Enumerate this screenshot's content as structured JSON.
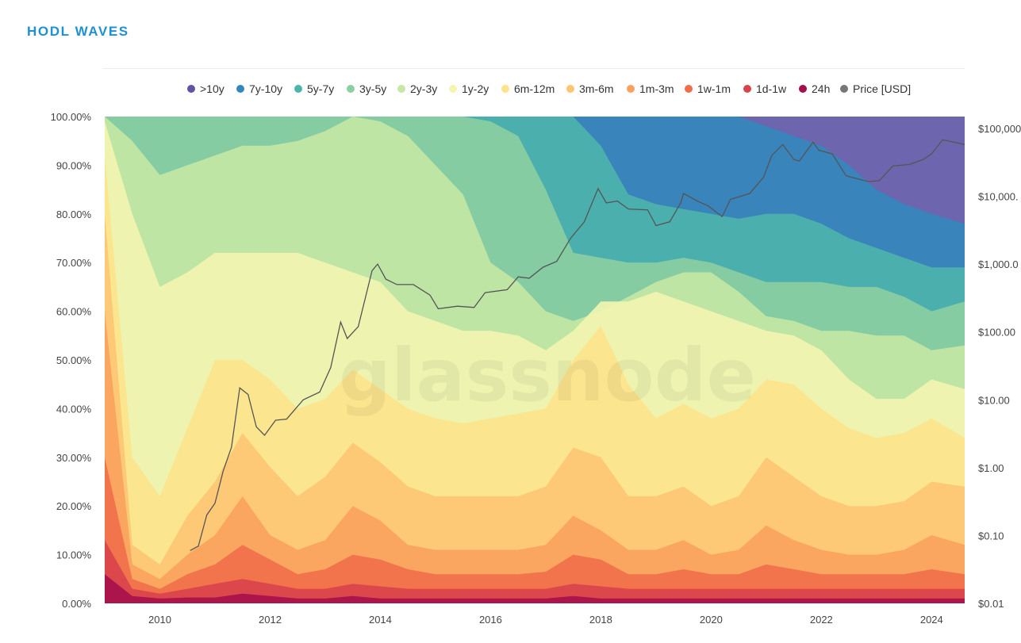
{
  "header": {
    "title": "HODL WAVES"
  },
  "watermark": "glassnode",
  "legend": [
    {
      "label": ">10y",
      "color": "#5d54a4"
    },
    {
      "label": "7y-10y",
      "color": "#3387bc"
    },
    {
      "label": "5y-7y",
      "color": "#4cb4ac"
    },
    {
      "label": "3y-5y",
      "color": "#8ccfa2"
    },
    {
      "label": "2y-3y",
      "color": "#c5e8a4"
    },
    {
      "label": "1y-2y",
      "color": "#f3f5b0"
    },
    {
      "label": "6m-12m",
      "color": "#fde38c"
    },
    {
      "label": "3m-6m",
      "color": "#fdc573"
    },
    {
      "label": "1m-3m",
      "color": "#f9a25f"
    },
    {
      "label": "1w-1m",
      "color": "#f06f4a"
    },
    {
      "label": "1d-1w",
      "color": "#d9434d"
    },
    {
      "label": "24h",
      "color": "#a50f4b"
    },
    {
      "label": "Price [USD]",
      "color": "#777777"
    }
  ],
  "chart_data": {
    "type": "area",
    "stacked": true,
    "title": "HODL WAVES",
    "x": [
      2009.0,
      2009.5,
      2010.0,
      2010.5,
      2011.0,
      2011.5,
      2012.0,
      2012.5,
      2013.0,
      2013.5,
      2014.0,
      2014.5,
      2015.0,
      2015.5,
      2016.0,
      2016.5,
      2017.0,
      2017.5,
      2018.0,
      2018.5,
      2019.0,
      2019.5,
      2020.0,
      2020.5,
      2021.0,
      2021.5,
      2022.0,
      2022.5,
      2023.0,
      2023.5,
      2024.0,
      2024.6
    ],
    "xlim": [
      2009.0,
      2024.6
    ],
    "x_ticks": [
      "2010",
      "2012",
      "2014",
      "2016",
      "2018",
      "2020",
      "2022",
      "2024"
    ],
    "y_left_ticks": [
      "0.00%",
      "10.00%",
      "20.00%",
      "30.00%",
      "40.00%",
      "50.00%",
      "60.00%",
      "70.00%",
      "80.00%",
      "90.00%",
      "100.00%"
    ],
    "y_right_ticks": [
      "$0.01",
      "$0.10",
      "$1.00",
      "$10.00",
      "$100.00",
      "$1,000.0",
      "$10,000.",
      "$100,000"
    ],
    "ylim": [
      0,
      100
    ],
    "y_right_scale": "log",
    "grid": false,
    "legend_position": "top",
    "bands_order": "bottom-to-top",
    "cumulative_upper_bounds_percent": [
      {
        "name": "24h",
        "values": [
          6,
          1.5,
          1,
          1.2,
          1.2,
          2,
          1.5,
          1,
          1,
          1.5,
          1,
          1,
          1,
          1,
          1,
          1,
          1,
          1.5,
          1,
          1,
          1,
          1,
          1,
          1,
          1,
          1,
          1,
          1,
          1,
          1,
          1,
          1
        ]
      },
      {
        "name": "1d-1w",
        "values": [
          13,
          3,
          2,
          3,
          4,
          5,
          4,
          3,
          3,
          4,
          3.5,
          3,
          3,
          3,
          3,
          3,
          3,
          4,
          3.5,
          3,
          3,
          3,
          3,
          3,
          3,
          3,
          3,
          3,
          3,
          3,
          3,
          3
        ]
      },
      {
        "name": "1w-1m",
        "values": [
          30,
          5,
          3,
          6,
          8,
          12,
          9,
          6,
          7,
          10,
          9,
          7,
          6,
          6,
          6,
          6,
          6.5,
          10,
          9,
          6,
          6,
          7,
          6,
          6,
          8,
          7,
          6,
          6,
          6,
          6,
          7,
          6
        ]
      },
      {
        "name": "1m-3m",
        "values": [
          60,
          8,
          5,
          10,
          14,
          22,
          14,
          11,
          13,
          20,
          17,
          12,
          11,
          11,
          11,
          11,
          12,
          18,
          15,
          11,
          11,
          13,
          10,
          11,
          16,
          13,
          11,
          10,
          10,
          11,
          14,
          12
        ]
      },
      {
        "name": "3m-6m",
        "values": [
          80,
          12,
          8,
          18,
          25,
          35,
          28,
          22,
          26,
          33,
          29,
          24,
          22,
          22,
          22,
          22,
          24,
          32,
          30,
          22,
          22,
          24,
          20,
          22,
          30,
          26,
          22,
          20,
          20,
          21,
          25,
          24
        ]
      },
      {
        "name": "6m-12m",
        "values": [
          92,
          30,
          22,
          36,
          50,
          50,
          46,
          40,
          42,
          48,
          44,
          40,
          38,
          37,
          38,
          39,
          40,
          50,
          57,
          45,
          38,
          41,
          38,
          40,
          46,
          45,
          40,
          36,
          34,
          35,
          38,
          34
        ]
      },
      {
        "name": "1y-2y",
        "values": [
          99,
          80,
          65,
          68,
          72,
          72,
          72,
          72,
          70,
          68,
          66,
          60,
          58,
          56,
          56,
          55,
          52,
          56,
          62,
          62,
          64,
          62,
          60,
          58,
          56,
          55,
          52,
          46,
          42,
          42,
          46,
          44
        ]
      },
      {
        "name": "2y-3y",
        "values": [
          100,
          95,
          88,
          90,
          92,
          94,
          94,
          95,
          97,
          100,
          99,
          96,
          90,
          84,
          70,
          66,
          60,
          58,
          60,
          63,
          66,
          68,
          68,
          64,
          59,
          58,
          56,
          56,
          55,
          55,
          52,
          53
        ]
      },
      {
        "name": "3y-5y",
        "values": [
          100,
          100,
          100,
          100,
          100,
          100,
          100,
          100,
          100,
          100,
          100,
          100,
          100,
          100,
          99,
          96,
          85,
          72,
          71,
          70,
          70,
          71,
          70,
          68,
          66,
          66,
          66,
          65,
          65,
          63,
          60,
          62
        ]
      },
      {
        "name": "5y-7y",
        "values": [
          100,
          100,
          100,
          100,
          100,
          100,
          100,
          100,
          100,
          100,
          100,
          100,
          100,
          100,
          100,
          100,
          100,
          100,
          94,
          84,
          82,
          81,
          80,
          79,
          80,
          80,
          78,
          75,
          73,
          71,
          69,
          69
        ]
      },
      {
        "name": "7y-10y",
        "values": [
          100,
          100,
          100,
          100,
          100,
          100,
          100,
          100,
          100,
          100,
          100,
          100,
          100,
          100,
          100,
          100,
          100,
          100,
          100,
          100,
          100,
          100,
          100,
          100,
          98,
          96,
          94,
          90,
          85,
          82,
          80,
          78
        ]
      },
      {
        "name": ">10y",
        "values": [
          100,
          100,
          100,
          100,
          100,
          100,
          100,
          100,
          100,
          100,
          100,
          100,
          100,
          100,
          100,
          100,
          100,
          100,
          100,
          100,
          100,
          100,
          100,
          100,
          100,
          100,
          100,
          100,
          100,
          100,
          100,
          100
        ]
      }
    ],
    "price_series": {
      "name": "Price [USD]",
      "points": [
        [
          2010.55,
          0.06
        ],
        [
          2010.7,
          0.07
        ],
        [
          2010.85,
          0.2
        ],
        [
          2011.0,
          0.3
        ],
        [
          2011.15,
          0.9
        ],
        [
          2011.3,
          2
        ],
        [
          2011.45,
          15
        ],
        [
          2011.6,
          12
        ],
        [
          2011.75,
          4
        ],
        [
          2011.9,
          3
        ],
        [
          2012.1,
          5
        ],
        [
          2012.3,
          5.2
        ],
        [
          2012.6,
          10
        ],
        [
          2012.9,
          13
        ],
        [
          2013.1,
          30
        ],
        [
          2013.28,
          140
        ],
        [
          2013.4,
          80
        ],
        [
          2013.6,
          120
        ],
        [
          2013.85,
          800
        ],
        [
          2013.95,
          1000
        ],
        [
          2014.1,
          600
        ],
        [
          2014.3,
          500
        ],
        [
          2014.6,
          500
        ],
        [
          2014.9,
          350
        ],
        [
          2015.05,
          220
        ],
        [
          2015.4,
          240
        ],
        [
          2015.7,
          230
        ],
        [
          2015.9,
          380
        ],
        [
          2016.3,
          420
        ],
        [
          2016.5,
          650
        ],
        [
          2016.7,
          620
        ],
        [
          2016.95,
          900
        ],
        [
          2017.2,
          1100
        ],
        [
          2017.45,
          2400
        ],
        [
          2017.7,
          4200
        ],
        [
          2017.95,
          13000
        ],
        [
          2018.1,
          8000
        ],
        [
          2018.3,
          8500
        ],
        [
          2018.5,
          6500
        ],
        [
          2018.85,
          6300
        ],
        [
          2019.0,
          3700
        ],
        [
          2019.25,
          4200
        ],
        [
          2019.45,
          8000
        ],
        [
          2019.5,
          11000
        ],
        [
          2019.75,
          8500
        ],
        [
          2019.95,
          7200
        ],
        [
          2020.2,
          5000
        ],
        [
          2020.35,
          9000
        ],
        [
          2020.7,
          11000
        ],
        [
          2020.95,
          19000
        ],
        [
          2021.1,
          40000
        ],
        [
          2021.3,
          58000
        ],
        [
          2021.5,
          35000
        ],
        [
          2021.6,
          33000
        ],
        [
          2021.85,
          63000
        ],
        [
          2021.95,
          48000
        ],
        [
          2022.2,
          42000
        ],
        [
          2022.45,
          20000
        ],
        [
          2022.85,
          16500
        ],
        [
          2023.05,
          17000
        ],
        [
          2023.3,
          28000
        ],
        [
          2023.6,
          29500
        ],
        [
          2023.85,
          35000
        ],
        [
          2024.0,
          42000
        ],
        [
          2024.2,
          68000
        ],
        [
          2024.4,
          63000
        ],
        [
          2024.6,
          58000
        ]
      ]
    }
  }
}
